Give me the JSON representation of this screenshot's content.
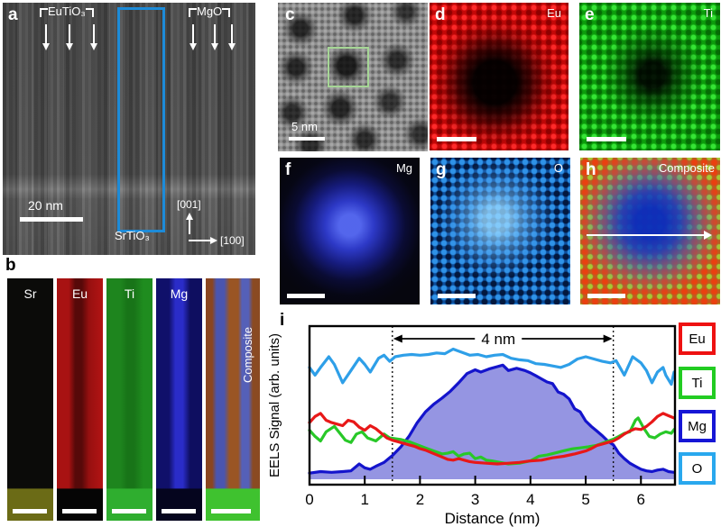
{
  "panels": {
    "a": {
      "label": "a",
      "film": "EuTiO₃",
      "cap": "MgO",
      "substrate": "SrTiO₃",
      "scalebar": "20 nm",
      "axis_up": "[001]",
      "axis_right": "[100]"
    },
    "b": {
      "label": "b",
      "maps": [
        {
          "name": "Sr"
        },
        {
          "name": "Eu"
        },
        {
          "name": "Ti"
        },
        {
          "name": "Mg"
        },
        {
          "name": "Composite"
        }
      ]
    },
    "c": {
      "label": "c",
      "scalebar": "5 nm"
    },
    "d": {
      "label": "d",
      "element": "Eu"
    },
    "e": {
      "label": "e",
      "element": "Ti"
    },
    "f": {
      "label": "f",
      "element": "Mg"
    },
    "g": {
      "label": "g",
      "element": "O"
    },
    "h": {
      "label": "h",
      "element": "Composite"
    },
    "i": {
      "label": "i"
    }
  },
  "colors": {
    "highlight_box_blue": "#1d8bd8",
    "highlight_box_green": "#a6d696",
    "eu_red": "#e81818",
    "ti_green": "#28c828",
    "mg_blue": "#1414cc",
    "mg_fill": "#9595e2",
    "o_lightblue": "#2e9fe8"
  },
  "chart_data": {
    "type": "line",
    "title": "",
    "xlabel": "Distance (nm)",
    "ylabel": "EELS Signal (arb. units)",
    "xlim": [
      0,
      6.6
    ],
    "ylim": [
      0,
      1
    ],
    "xticks": [
      0,
      1,
      2,
      3,
      4,
      5,
      6
    ],
    "grid": false,
    "legend_position": "right-outside",
    "annotation": {
      "text": "4 nm",
      "x_start": 1.5,
      "x_end": 5.5
    },
    "legend": [
      {
        "label": "Eu",
        "color": "#ee1111"
      },
      {
        "label": "Ti",
        "color": "#22cc22"
      },
      {
        "label": "Mg",
        "color": "#1616d6"
      },
      {
        "label": "O",
        "color": "#29a8ee"
      }
    ],
    "series": [
      {
        "name": "Mg",
        "color": "#1414cc",
        "fill": "#9595e2",
        "points": [
          [
            0,
            0.04
          ],
          [
            0.2,
            0.05
          ],
          [
            0.4,
            0.045
          ],
          [
            0.6,
            0.05
          ],
          [
            0.75,
            0.055
          ],
          [
            0.9,
            0.1
          ],
          [
            1,
            0.075
          ],
          [
            1.1,
            0.065
          ],
          [
            1.2,
            0.085
          ],
          [
            1.35,
            0.11
          ],
          [
            1.5,
            0.155
          ],
          [
            1.65,
            0.21
          ],
          [
            1.8,
            0.28
          ],
          [
            1.95,
            0.37
          ],
          [
            2.1,
            0.44
          ],
          [
            2.25,
            0.49
          ],
          [
            2.4,
            0.53
          ],
          [
            2.55,
            0.575
          ],
          [
            2.7,
            0.63
          ],
          [
            2.85,
            0.69
          ],
          [
            3,
            0.715
          ],
          [
            3.1,
            0.7
          ],
          [
            3.25,
            0.72
          ],
          [
            3.4,
            0.735
          ],
          [
            3.5,
            0.745
          ],
          [
            3.6,
            0.71
          ],
          [
            3.75,
            0.725
          ],
          [
            3.9,
            0.71
          ],
          [
            4,
            0.695
          ],
          [
            4.1,
            0.675
          ],
          [
            4.2,
            0.655
          ],
          [
            4.3,
            0.635
          ],
          [
            4.4,
            0.625
          ],
          [
            4.5,
            0.57
          ],
          [
            4.6,
            0.555
          ],
          [
            4.7,
            0.525
          ],
          [
            4.8,
            0.46
          ],
          [
            4.9,
            0.44
          ],
          [
            5,
            0.38
          ],
          [
            5.1,
            0.345
          ],
          [
            5.2,
            0.315
          ],
          [
            5.3,
            0.285
          ],
          [
            5.4,
            0.25
          ],
          [
            5.5,
            0.225
          ],
          [
            5.6,
            0.17
          ],
          [
            5.7,
            0.135
          ],
          [
            5.8,
            0.105
          ],
          [
            5.9,
            0.085
          ],
          [
            6,
            0.065
          ],
          [
            6.1,
            0.055
          ],
          [
            6.2,
            0.05
          ],
          [
            6.3,
            0.06
          ],
          [
            6.4,
            0.065
          ],
          [
            6.5,
            0.05
          ],
          [
            6.6,
            0.045
          ]
        ]
      },
      {
        "name": "Ti",
        "color": "#28c828",
        "points": [
          [
            0,
            0.32
          ],
          [
            0.1,
            0.28
          ],
          [
            0.2,
            0.25
          ],
          [
            0.3,
            0.31
          ],
          [
            0.45,
            0.345
          ],
          [
            0.55,
            0.3
          ],
          [
            0.65,
            0.255
          ],
          [
            0.75,
            0.24
          ],
          [
            0.85,
            0.295
          ],
          [
            0.95,
            0.31
          ],
          [
            1.05,
            0.27
          ],
          [
            1.2,
            0.25
          ],
          [
            1.35,
            0.295
          ],
          [
            1.45,
            0.27
          ],
          [
            1.55,
            0.265
          ],
          [
            1.65,
            0.26
          ],
          [
            1.8,
            0.245
          ],
          [
            1.95,
            0.225
          ],
          [
            2.1,
            0.205
          ],
          [
            2.25,
            0.185
          ],
          [
            2.4,
            0.165
          ],
          [
            2.5,
            0.17
          ],
          [
            2.6,
            0.18
          ],
          [
            2.7,
            0.15
          ],
          [
            2.8,
            0.165
          ],
          [
            2.9,
            0.17
          ],
          [
            3,
            0.135
          ],
          [
            3.1,
            0.145
          ],
          [
            3.2,
            0.125
          ],
          [
            3.3,
            0.12
          ],
          [
            3.45,
            0.11
          ],
          [
            3.6,
            0.1
          ],
          [
            3.8,
            0.105
          ],
          [
            4,
            0.12
          ],
          [
            4.15,
            0.15
          ],
          [
            4.3,
            0.158
          ],
          [
            4.45,
            0.172
          ],
          [
            4.6,
            0.186
          ],
          [
            4.75,
            0.198
          ],
          [
            4.9,
            0.205
          ],
          [
            5.05,
            0.212
          ],
          [
            5.2,
            0.222
          ],
          [
            5.35,
            0.242
          ],
          [
            5.5,
            0.262
          ],
          [
            5.6,
            0.28
          ],
          [
            5.7,
            0.3
          ],
          [
            5.8,
            0.31
          ],
          [
            5.9,
            0.385
          ],
          [
            5.95,
            0.4
          ],
          [
            6.05,
            0.335
          ],
          [
            6.15,
            0.28
          ],
          [
            6.25,
            0.27
          ],
          [
            6.35,
            0.295
          ],
          [
            6.45,
            0.31
          ],
          [
            6.55,
            0.3
          ],
          [
            6.6,
            0.325
          ]
        ]
      },
      {
        "name": "Eu",
        "color": "#e81818",
        "points": [
          [
            0,
            0.37
          ],
          [
            0.1,
            0.41
          ],
          [
            0.2,
            0.43
          ],
          [
            0.3,
            0.385
          ],
          [
            0.4,
            0.37
          ],
          [
            0.5,
            0.36
          ],
          [
            0.6,
            0.35
          ],
          [
            0.7,
            0.385
          ],
          [
            0.8,
            0.375
          ],
          [
            0.9,
            0.34
          ],
          [
            1,
            0.32
          ],
          [
            1.1,
            0.35
          ],
          [
            1.2,
            0.33
          ],
          [
            1.3,
            0.3
          ],
          [
            1.4,
            0.27
          ],
          [
            1.5,
            0.255
          ],
          [
            1.6,
            0.245
          ],
          [
            1.7,
            0.235
          ],
          [
            1.8,
            0.225
          ],
          [
            1.9,
            0.215
          ],
          [
            2,
            0.2
          ],
          [
            2.1,
            0.19
          ],
          [
            2.2,
            0.175
          ],
          [
            2.3,
            0.16
          ],
          [
            2.4,
            0.145
          ],
          [
            2.5,
            0.13
          ],
          [
            2.6,
            0.125
          ],
          [
            2.7,
            0.135
          ],
          [
            2.8,
            0.125
          ],
          [
            2.9,
            0.115
          ],
          [
            3,
            0.11
          ],
          [
            3.2,
            0.105
          ],
          [
            3.4,
            0.1
          ],
          [
            3.6,
            0.105
          ],
          [
            3.8,
            0.11
          ],
          [
            4,
            0.12
          ],
          [
            4.2,
            0.125
          ],
          [
            4.4,
            0.14
          ],
          [
            4.6,
            0.15
          ],
          [
            4.8,
            0.165
          ],
          [
            5,
            0.185
          ],
          [
            5.1,
            0.2
          ],
          [
            5.2,
            0.22
          ],
          [
            5.3,
            0.23
          ],
          [
            5.4,
            0.24
          ],
          [
            5.5,
            0.25
          ],
          [
            5.6,
            0.27
          ],
          [
            5.7,
            0.295
          ],
          [
            5.8,
            0.315
          ],
          [
            5.9,
            0.33
          ],
          [
            6,
            0.325
          ],
          [
            6.1,
            0.345
          ],
          [
            6.2,
            0.375
          ],
          [
            6.3,
            0.41
          ],
          [
            6.4,
            0.43
          ],
          [
            6.5,
            0.415
          ],
          [
            6.6,
            0.4
          ]
        ]
      },
      {
        "name": "O",
        "color": "#2e9fe8",
        "points": [
          [
            0,
            0.73
          ],
          [
            0.1,
            0.68
          ],
          [
            0.2,
            0.73
          ],
          [
            0.35,
            0.8
          ],
          [
            0.45,
            0.75
          ],
          [
            0.6,
            0.63
          ],
          [
            0.75,
            0.71
          ],
          [
            0.9,
            0.79
          ],
          [
            1,
            0.75
          ],
          [
            1.1,
            0.7
          ],
          [
            1.25,
            0.79
          ],
          [
            1.35,
            0.81
          ],
          [
            1.45,
            0.77
          ],
          [
            1.55,
            0.8
          ],
          [
            1.7,
            0.81
          ],
          [
            1.85,
            0.815
          ],
          [
            2,
            0.81
          ],
          [
            2.15,
            0.815
          ],
          [
            2.3,
            0.825
          ],
          [
            2.45,
            0.82
          ],
          [
            2.6,
            0.85
          ],
          [
            2.75,
            0.83
          ],
          [
            2.9,
            0.81
          ],
          [
            3.05,
            0.815
          ],
          [
            3.2,
            0.8
          ],
          [
            3.35,
            0.81
          ],
          [
            3.5,
            0.815
          ],
          [
            3.65,
            0.79
          ],
          [
            3.8,
            0.78
          ],
          [
            3.95,
            0.775
          ],
          [
            4.1,
            0.755
          ],
          [
            4.25,
            0.75
          ],
          [
            4.4,
            0.74
          ],
          [
            4.55,
            0.73
          ],
          [
            4.7,
            0.75
          ],
          [
            4.85,
            0.785
          ],
          [
            5,
            0.8
          ],
          [
            5.15,
            0.785
          ],
          [
            5.3,
            0.77
          ],
          [
            5.45,
            0.76
          ],
          [
            5.55,
            0.775
          ],
          [
            5.7,
            0.68
          ],
          [
            5.85,
            0.8
          ],
          [
            6,
            0.76
          ],
          [
            6.1,
            0.71
          ],
          [
            6.2,
            0.63
          ],
          [
            6.3,
            0.7
          ],
          [
            6.4,
            0.73
          ],
          [
            6.45,
            0.68
          ],
          [
            6.55,
            0.62
          ],
          [
            6.6,
            0.7
          ]
        ]
      }
    ]
  }
}
